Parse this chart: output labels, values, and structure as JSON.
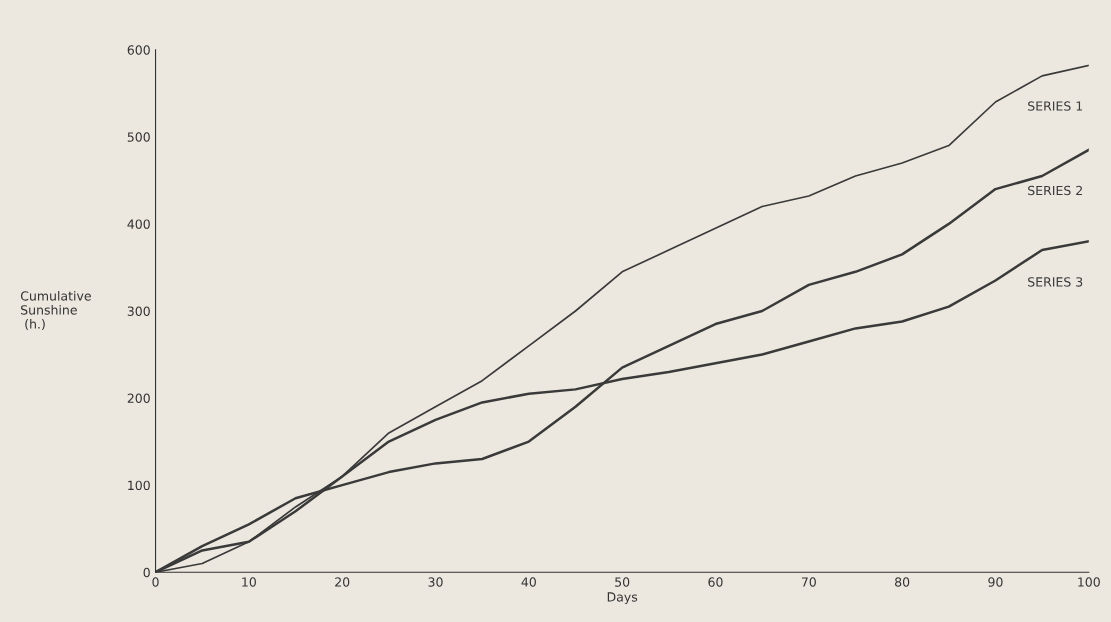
{
  "chart_data": {
    "type": "line",
    "xlabel": "Days",
    "ylabel": "Cumulative\nSunshine\n (h.)",
    "xlim": [
      0,
      100
    ],
    "ylim": [
      0,
      600
    ],
    "xticks": [
      0,
      10,
      20,
      30,
      40,
      50,
      60,
      70,
      80,
      90,
      100
    ],
    "yticks": [
      0,
      100,
      200,
      300,
      400,
      500,
      600
    ],
    "grid": false,
    "legend": false,
    "marker": "none",
    "line_style": "solid",
    "x": [
      0,
      5,
      10,
      15,
      20,
      25,
      30,
      35,
      40,
      45,
      50,
      55,
      60,
      65,
      70,
      75,
      80,
      85,
      90,
      95,
      100
    ],
    "series": [
      {
        "name": "SERIES 1",
        "color": "#3a3a3a",
        "values": [
          0,
          10,
          35,
          75,
          110,
          160,
          190,
          220,
          260,
          300,
          345,
          370,
          395,
          420,
          432,
          455,
          470,
          490,
          540,
          570,
          582
        ]
      },
      {
        "name": "SERIES 2",
        "color": "#3a3a3a",
        "values": [
          0,
          30,
          55,
          85,
          100,
          115,
          125,
          130,
          150,
          190,
          235,
          260,
          285,
          300,
          330,
          345,
          365,
          400,
          440,
          455,
          485
        ]
      },
      {
        "name": "SERIES 3",
        "color": "#3a3a3a",
        "values": [
          0,
          25,
          35,
          70,
          110,
          150,
          175,
          195,
          205,
          210,
          222,
          230,
          240,
          250,
          265,
          280,
          288,
          305,
          335,
          370,
          380
        ]
      }
    ]
  }
}
